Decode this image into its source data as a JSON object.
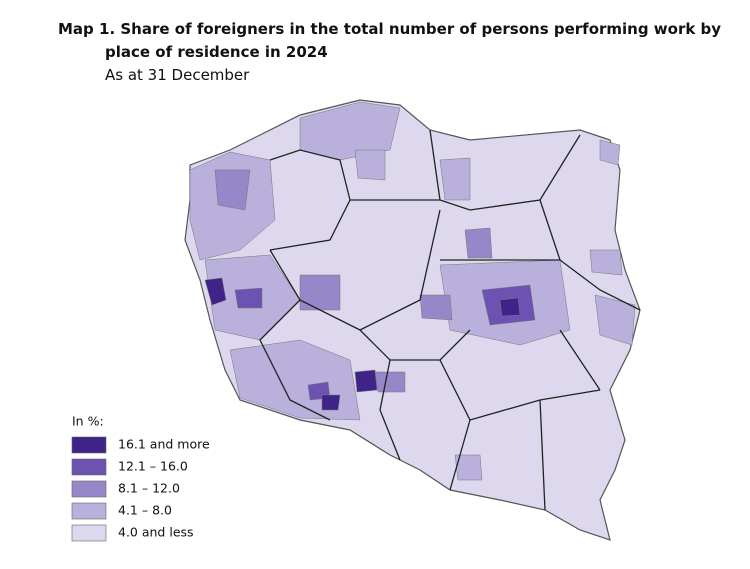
{
  "header": {
    "title": "Map 1. Share of foreigners in the total number of persons performing work by place of residence in 2024",
    "subtitle": "As at 31 December"
  },
  "legend": {
    "title": "In %:",
    "items": [
      {
        "label": "16.1 and more",
        "color": "#3f2388"
      },
      {
        "label": "12.1 – 16.0",
        "color": "#6c52b1"
      },
      {
        "label": "8.1 – 12.0",
        "color": "#9687c9"
      },
      {
        "label": "4.1 –  8.0",
        "color": "#b9b0dc"
      },
      {
        "label": "4.0 and less",
        "color": "#ddd8ee"
      }
    ]
  }
}
